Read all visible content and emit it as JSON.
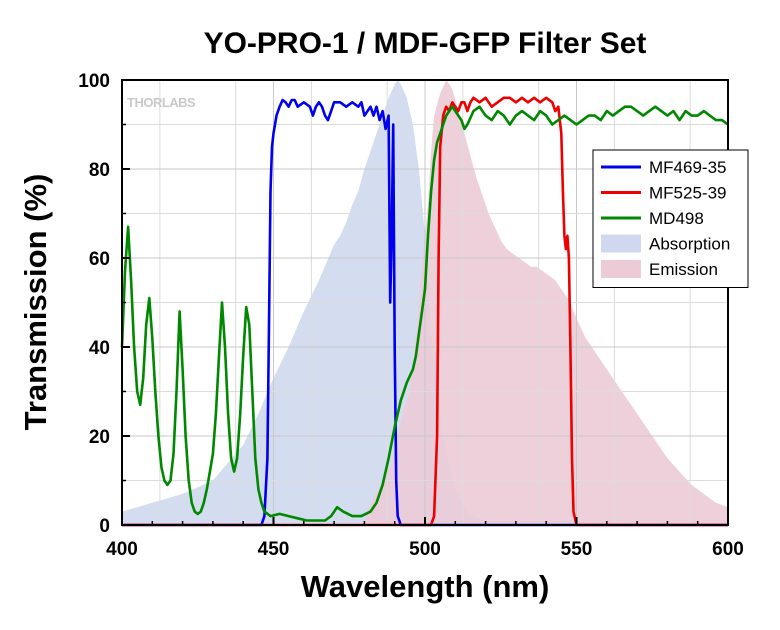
{
  "chart_data": {
    "type": "line",
    "title": "YO-PRO-1 / MDF-GFP Filter Set",
    "xlabel": "Wavelength (nm)",
    "ylabel": "Transmission (%)",
    "xlim": [
      400,
      600
    ],
    "ylim": [
      0,
      100
    ],
    "xticks": [
      400,
      450,
      500,
      550,
      600
    ],
    "yticks": [
      0,
      20,
      40,
      60,
      80,
      100
    ],
    "grid": true,
    "legend_position": "right",
    "watermark": "THORLABS",
    "series": [
      {
        "name": "MF469-35",
        "kind": "line",
        "color": "#0000ee",
        "points": [
          [
            400,
            0
          ],
          [
            446,
            0
          ],
          [
            447,
            2
          ],
          [
            448,
            15
          ],
          [
            448.5,
            45
          ],
          [
            449,
            75
          ],
          [
            449.5,
            85
          ],
          [
            450,
            88
          ],
          [
            451,
            92
          ],
          [
            452,
            94
          ],
          [
            453,
            95.5
          ],
          [
            454,
            95
          ],
          [
            455,
            94
          ],
          [
            456,
            95.5
          ],
          [
            457,
            95.5
          ],
          [
            458,
            94
          ],
          [
            460,
            95
          ],
          [
            462,
            94
          ],
          [
            463,
            92
          ],
          [
            464,
            94
          ],
          [
            465,
            95
          ],
          [
            466,
            94
          ],
          [
            467,
            92
          ],
          [
            468,
            91
          ],
          [
            469,
            93
          ],
          [
            470,
            95
          ],
          [
            472,
            95
          ],
          [
            474,
            94
          ],
          [
            476,
            95
          ],
          [
            478,
            94
          ],
          [
            479,
            95
          ],
          [
            480,
            92
          ],
          [
            482,
            94
          ],
          [
            483,
            92
          ],
          [
            484,
            94
          ],
          [
            485,
            91
          ],
          [
            486,
            93
          ],
          [
            487,
            89
          ],
          [
            488,
            92
          ],
          [
            488.5,
            50
          ],
          [
            489,
            65
          ],
          [
            489.5,
            90
          ],
          [
            490,
            40
          ],
          [
            490.5,
            10
          ],
          [
            491,
            2
          ],
          [
            492,
            0
          ],
          [
            600,
            0
          ]
        ]
      },
      {
        "name": "MF525-39",
        "kind": "line",
        "color": "#ee0000",
        "points": [
          [
            400,
            0
          ],
          [
            502,
            0
          ],
          [
            503,
            2
          ],
          [
            504,
            20
          ],
          [
            504.5,
            60
          ],
          [
            505,
            85
          ],
          [
            506,
            92
          ],
          [
            507,
            94
          ],
          [
            508,
            93
          ],
          [
            509,
            95
          ],
          [
            510,
            94
          ],
          [
            511,
            93
          ],
          [
            512,
            95
          ],
          [
            513,
            95
          ],
          [
            514,
            93
          ],
          [
            515,
            95
          ],
          [
            516,
            96
          ],
          [
            518,
            95
          ],
          [
            520,
            96
          ],
          [
            522,
            94
          ],
          [
            524,
            95
          ],
          [
            526,
            96
          ],
          [
            528,
            96
          ],
          [
            530,
            95
          ],
          [
            532,
            96
          ],
          [
            534,
            95
          ],
          [
            536,
            96
          ],
          [
            538,
            95
          ],
          [
            540,
            96
          ],
          [
            542,
            95
          ],
          [
            543,
            93
          ],
          [
            544,
            94
          ],
          [
            545,
            88
          ],
          [
            545.5,
            75
          ],
          [
            546,
            65
          ],
          [
            546.5,
            62
          ],
          [
            547,
            65
          ],
          [
            547.5,
            60
          ],
          [
            548,
            40
          ],
          [
            548.5,
            15
          ],
          [
            549,
            3
          ],
          [
            550,
            0
          ],
          [
            600,
            0
          ]
        ]
      },
      {
        "name": "MD498",
        "kind": "line",
        "color": "#008800",
        "points": [
          [
            400,
            40
          ],
          [
            401,
            57
          ],
          [
            402,
            67
          ],
          [
            403,
            55
          ],
          [
            404,
            40
          ],
          [
            405,
            30
          ],
          [
            406,
            27
          ],
          [
            407,
            33
          ],
          [
            408,
            45
          ],
          [
            409,
            51
          ],
          [
            410,
            42
          ],
          [
            411,
            30
          ],
          [
            412,
            20
          ],
          [
            413,
            13
          ],
          [
            414,
            10
          ],
          [
            415,
            9
          ],
          [
            416,
            10
          ],
          [
            417,
            16
          ],
          [
            418,
            30
          ],
          [
            419,
            48
          ],
          [
            420,
            35
          ],
          [
            421,
            20
          ],
          [
            422,
            10
          ],
          [
            423,
            5
          ],
          [
            424,
            3
          ],
          [
            425,
            2.5
          ],
          [
            426,
            3
          ],
          [
            427,
            5
          ],
          [
            428,
            8
          ],
          [
            429,
            12
          ],
          [
            430,
            16
          ],
          [
            431,
            25
          ],
          [
            432,
            38
          ],
          [
            433,
            50
          ],
          [
            434,
            40
          ],
          [
            435,
            25
          ],
          [
            436,
            15
          ],
          [
            437,
            12
          ],
          [
            438,
            15
          ],
          [
            439,
            25
          ],
          [
            440,
            38
          ],
          [
            441,
            49
          ],
          [
            442,
            45
          ],
          [
            443,
            30
          ],
          [
            444,
            15
          ],
          [
            445,
            8
          ],
          [
            446,
            5
          ],
          [
            447,
            3
          ],
          [
            449,
            2
          ],
          [
            452,
            2.5
          ],
          [
            455,
            2
          ],
          [
            458,
            1.5
          ],
          [
            461,
            1
          ],
          [
            464,
            1
          ],
          [
            467,
            1
          ],
          [
            469,
            2
          ],
          [
            471,
            4
          ],
          [
            473,
            3
          ],
          [
            476,
            2
          ],
          [
            479,
            2
          ],
          [
            482,
            3
          ],
          [
            484,
            5
          ],
          [
            486,
            9
          ],
          [
            488,
            15
          ],
          [
            490,
            22
          ],
          [
            492,
            28
          ],
          [
            494,
            32
          ],
          [
            496,
            35
          ],
          [
            497,
            38
          ],
          [
            498,
            43
          ],
          [
            499,
            48
          ],
          [
            500,
            53
          ],
          [
            501,
            65
          ],
          [
            502,
            75
          ],
          [
            503,
            82
          ],
          [
            504,
            86
          ],
          [
            505,
            88
          ],
          [
            506,
            90
          ],
          [
            507,
            92
          ],
          [
            508,
            93
          ],
          [
            509,
            94
          ],
          [
            510,
            93
          ],
          [
            512,
            91
          ],
          [
            513,
            89
          ],
          [
            514,
            90
          ],
          [
            516,
            93
          ],
          [
            518,
            94
          ],
          [
            520,
            92
          ],
          [
            522,
            91
          ],
          [
            524,
            93
          ],
          [
            526,
            92
          ],
          [
            528,
            90
          ],
          [
            530,
            92
          ],
          [
            532,
            93
          ],
          [
            534,
            92
          ],
          [
            536,
            91
          ],
          [
            538,
            93
          ],
          [
            540,
            92
          ],
          [
            542,
            90
          ],
          [
            544,
            91
          ],
          [
            546,
            92
          ],
          [
            548,
            91
          ],
          [
            550,
            90
          ],
          [
            552,
            91
          ],
          [
            554,
            92
          ],
          [
            556,
            92
          ],
          [
            558,
            91
          ],
          [
            560,
            93
          ],
          [
            562,
            92
          ],
          [
            564,
            93
          ],
          [
            566,
            94
          ],
          [
            568,
            94
          ],
          [
            570,
            93
          ],
          [
            572,
            92
          ],
          [
            574,
            93
          ],
          [
            576,
            94
          ],
          [
            578,
            93
          ],
          [
            580,
            92
          ],
          [
            582,
            93
          ],
          [
            584,
            91
          ],
          [
            586,
            93
          ],
          [
            588,
            92
          ],
          [
            590,
            92
          ],
          [
            592,
            93
          ],
          [
            594,
            92
          ],
          [
            596,
            91
          ],
          [
            598,
            91
          ],
          [
            600,
            90
          ]
        ]
      },
      {
        "name": "Absorption",
        "kind": "area",
        "color": "#cfd8ee",
        "points": [
          [
            400,
            3
          ],
          [
            410,
            5
          ],
          [
            420,
            7
          ],
          [
            430,
            10
          ],
          [
            440,
            18
          ],
          [
            445,
            25
          ],
          [
            450,
            33
          ],
          [
            455,
            40
          ],
          [
            460,
            48
          ],
          [
            465,
            55
          ],
          [
            470,
            63
          ],
          [
            472,
            65
          ],
          [
            474,
            68
          ],
          [
            476,
            72
          ],
          [
            478,
            75
          ],
          [
            480,
            80
          ],
          [
            482,
            84
          ],
          [
            484,
            88
          ],
          [
            486,
            92
          ],
          [
            488,
            96
          ],
          [
            490,
            99
          ],
          [
            491,
            100
          ],
          [
            492,
            99
          ],
          [
            494,
            96
          ],
          [
            496,
            90
          ],
          [
            498,
            80
          ],
          [
            500,
            65
          ],
          [
            502,
            45
          ],
          [
            504,
            30
          ],
          [
            506,
            20
          ],
          [
            508,
            13
          ],
          [
            510,
            8
          ],
          [
            512,
            5
          ],
          [
            514,
            3
          ],
          [
            516,
            2
          ],
          [
            518,
            1.5
          ],
          [
            520,
            1
          ],
          [
            600,
            1
          ]
        ]
      },
      {
        "name": "Emission",
        "kind": "area",
        "color": "#eccbd7",
        "points": [
          [
            480,
            0
          ],
          [
            481,
            3
          ],
          [
            483,
            6
          ],
          [
            486,
            10
          ],
          [
            489,
            14
          ],
          [
            491,
            20
          ],
          [
            493,
            26
          ],
          [
            495,
            30
          ],
          [
            497,
            42
          ],
          [
            499,
            58
          ],
          [
            501,
            72
          ],
          [
            502,
            84
          ],
          [
            503,
            92
          ],
          [
            505,
            97
          ],
          [
            507,
            100
          ],
          [
            509,
            98
          ],
          [
            511,
            93
          ],
          [
            513,
            88
          ],
          [
            515,
            83
          ],
          [
            517,
            78
          ],
          [
            519,
            74
          ],
          [
            521,
            70
          ],
          [
            523,
            67
          ],
          [
            525,
            64
          ],
          [
            527,
            62
          ],
          [
            529,
            61
          ],
          [
            531,
            60
          ],
          [
            533,
            59
          ],
          [
            535,
            58
          ],
          [
            537,
            58
          ],
          [
            539,
            57
          ],
          [
            541,
            56
          ],
          [
            543,
            55
          ],
          [
            545,
            53
          ],
          [
            547,
            51
          ],
          [
            549,
            48
          ],
          [
            551,
            45
          ],
          [
            553,
            42
          ],
          [
            555,
            40
          ],
          [
            558,
            37
          ],
          [
            561,
            34
          ],
          [
            564,
            31
          ],
          [
            567,
            28
          ],
          [
            570,
            25
          ],
          [
            573,
            22
          ],
          [
            576,
            19
          ],
          [
            580,
            15
          ],
          [
            584,
            12
          ],
          [
            588,
            9
          ],
          [
            592,
            7
          ],
          [
            596,
            5
          ],
          [
            600,
            4
          ]
        ]
      }
    ]
  }
}
